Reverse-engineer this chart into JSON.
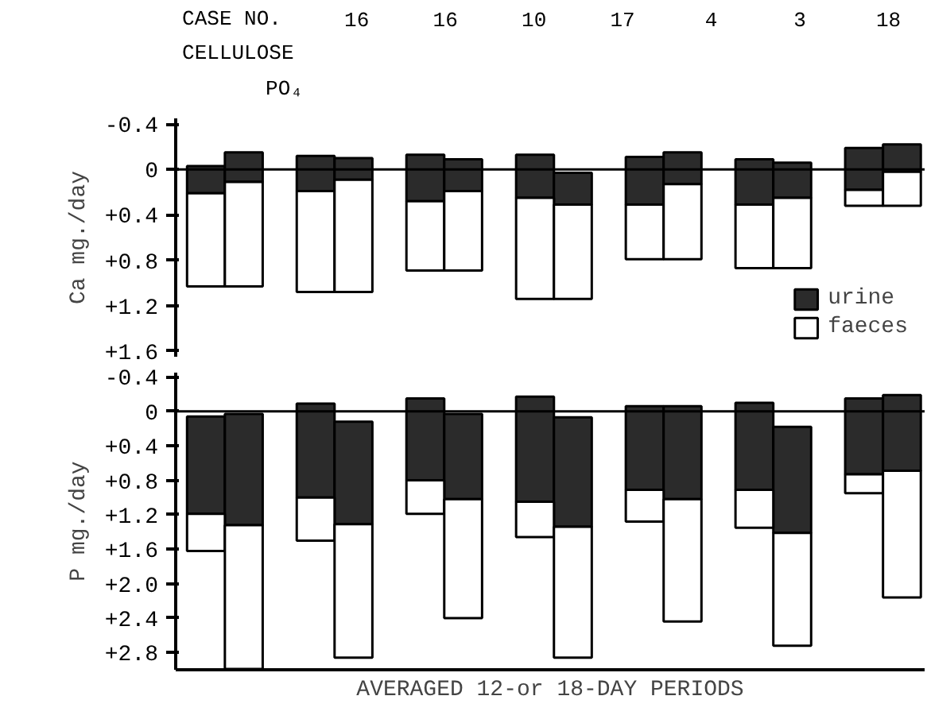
{
  "chart_data": [
    {
      "type": "bar",
      "ylabel": "Ca mg./day",
      "grid": false,
      "legend": "bottom right",
      "tick_labels": "y",
      "annotations": [
        "CASE NO.",
        "16",
        "16",
        "10",
        "17",
        "4",
        "3",
        "18",
        "CELLULOSE",
        "PO₄"
      ],
      "categories": [
        null,
        null,
        null,
        null,
        null,
        null,
        null,
        null,
        null,
        null,
        null,
        null,
        null,
        null
      ],
      "series": [
        {
          "name": "urine",
          "color": "#2b2b2b",
          "base": [
            -0.03,
            -0.15,
            -0.12,
            -0.1,
            -0.13,
            -0.09,
            -0.13,
            0.03,
            -0.11,
            -0.15,
            -0.09,
            -0.06,
            -0.19,
            -0.22
          ],
          "values": [
            0.24,
            0.26,
            0.31,
            0.19,
            0.41,
            0.28,
            0.38,
            0.28,
            0.42,
            0.28,
            0.4,
            0.31,
            0.37,
            0.24
          ]
        },
        {
          "name": "faeces",
          "color": "#ffffff",
          "base": [
            0.21,
            0.11,
            0.19,
            0.09,
            0.28,
            0.19,
            0.25,
            0.31,
            0.31,
            0.13,
            0.31,
            0.25,
            0.18,
            0.02
          ],
          "values": [
            0.82,
            0.92,
            0.89,
            0.99,
            0.61,
            0.7,
            0.89,
            0.83,
            0.48,
            0.66,
            0.56,
            0.62,
            0.14,
            0.3
          ]
        }
      ],
      "ylim": [
        1.65,
        -0.45
      ],
      "yticks": [
        {
          "value": -0.4,
          "label": "-0.4"
        },
        0,
        {
          "value": 0.4,
          "label": "+0.4"
        },
        {
          "value": 0.8,
          "label": "+0.8"
        },
        {
          "value": 1.2,
          "label": "+1.2"
        },
        {
          "value": 1.6,
          "label": "+1.6"
        }
      ],
      "ref_lines": [
        {
          "axis": "y",
          "value": 0,
          "color": "#000000"
        }
      ]
    },
    {
      "type": "bar",
      "ylabel": "P mg./day",
      "xlabel": "AVERAGED 12-or 18-DAY PERIODS",
      "grid": false,
      "tick_labels": "y",
      "categories": [
        null,
        null,
        null,
        null,
        null,
        null,
        null,
        null,
        null,
        null,
        null,
        null,
        null,
        null
      ],
      "series": [
        {
          "color": "#2b2b2b",
          "base": [
            0.06,
            0.03,
            -0.09,
            0.12,
            -0.15,
            0.03,
            -0.17,
            0.07,
            -0.06,
            -0.06,
            -0.1,
            0.18,
            -0.15,
            -0.19
          ],
          "values": [
            1.13,
            1.29,
            1.09,
            1.19,
            0.95,
            0.99,
            1.22,
            1.27,
            0.97,
            1.08,
            1.01,
            1.23,
            0.88,
            0.88
          ]
        },
        {
          "color": "#ffffff",
          "base": [
            1.19,
            1.32,
            1.0,
            1.31,
            0.8,
            1.02,
            1.05,
            1.34,
            0.91,
            1.02,
            0.91,
            1.41,
            0.73,
            0.69
          ],
          "values": [
            0.43,
            1.67,
            0.5,
            1.55,
            0.39,
            1.38,
            0.41,
            1.52,
            0.37,
            1.42,
            0.44,
            1.31,
            0.22,
            1.47
          ]
        }
      ],
      "ylim": [
        3.0,
        -0.45
      ],
      "yticks": [
        {
          "value": -0.4,
          "label": "-0.4"
        },
        0,
        {
          "value": 0.4,
          "label": "+0.4"
        },
        {
          "value": 0.8,
          "label": "+0.8"
        },
        {
          "value": 1.2,
          "label": "+1.2"
        },
        {
          "value": 1.6,
          "label": "+1.6"
        },
        {
          "value": 2.0,
          "label": "+2.0"
        },
        {
          "value": 2.4,
          "label": "+2.4"
        },
        {
          "value": 2.8,
          "label": "+2.8"
        }
      ],
      "ref_lines": [
        {
          "axis": "y",
          "value": 0,
          "color": "#000000"
        }
      ]
    }
  ]
}
